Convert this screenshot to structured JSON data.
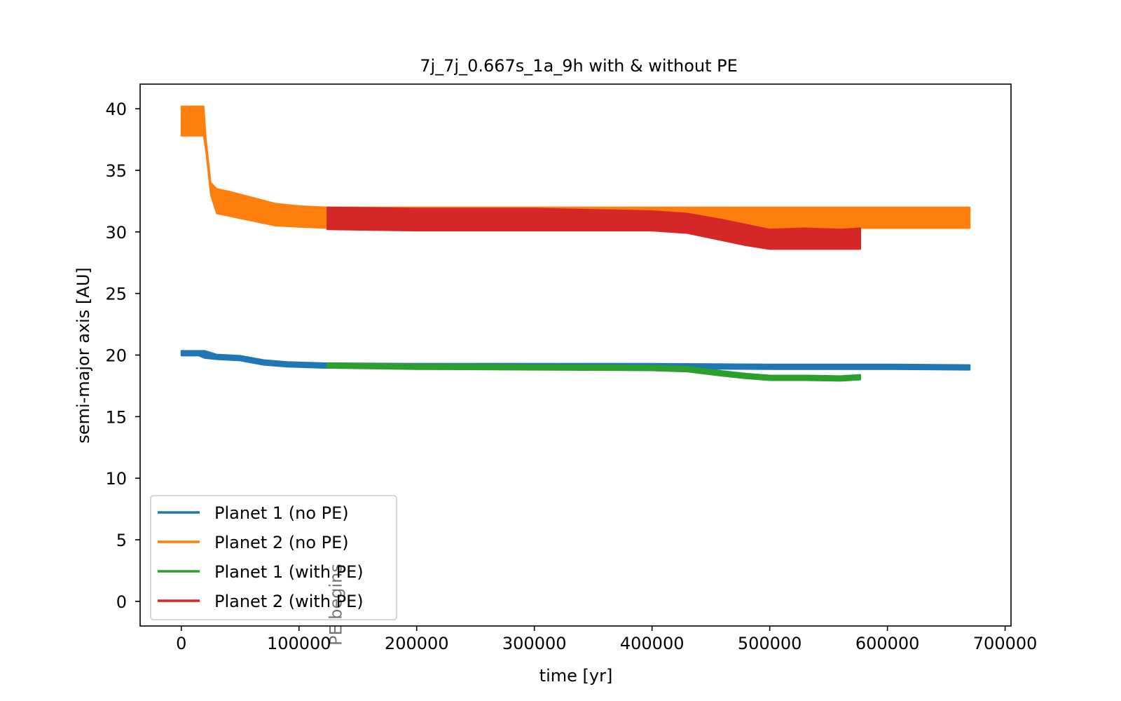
{
  "chart_data": {
    "type": "line",
    "title": "7j_7j_0.667s_1a_9h with & without PE",
    "xlabel": "time [yr]",
    "ylabel": "semi-major axis [AU]",
    "xlim": [
      -35000,
      705000
    ],
    "ylim": [
      -2,
      42
    ],
    "xticks": [
      0,
      100000,
      200000,
      300000,
      400000,
      500000,
      600000,
      700000
    ],
    "xtick_labels": [
      "0",
      "100000",
      "200000",
      "300000",
      "400000",
      "500000",
      "600000",
      "700000"
    ],
    "yticks": [
      0,
      5,
      10,
      15,
      20,
      25,
      30,
      35,
      40
    ],
    "ytick_labels": [
      "0",
      "5",
      "10",
      "15",
      "20",
      "25",
      "30",
      "35",
      "40"
    ],
    "grid": false,
    "legend_position": "lower-left",
    "annotation": {
      "text": "PE begins",
      "x": 138000,
      "rotation": -90
    },
    "series": [
      {
        "name": "Planet 1 (no PE)",
        "color": "#1f77b4",
        "x": [
          0,
          15000,
          20000,
          25000,
          30000,
          50000,
          70000,
          90000,
          120000,
          200000,
          300000,
          400000,
          500000,
          600000,
          670000
        ],
        "low": [
          19.95,
          19.95,
          19.75,
          19.7,
          19.65,
          19.55,
          19.2,
          19.05,
          18.95,
          18.9,
          18.9,
          18.9,
          18.85,
          18.85,
          18.8
        ],
        "high": [
          20.35,
          20.35,
          20.35,
          20.2,
          20.05,
          19.95,
          19.6,
          19.45,
          19.35,
          19.3,
          19.3,
          19.3,
          19.25,
          19.25,
          19.2
        ]
      },
      {
        "name": "Planet 2 (no PE)",
        "color": "#ff7f0e",
        "x": [
          0,
          19000,
          21000,
          25000,
          30000,
          40000,
          60000,
          80000,
          100000,
          125000,
          200000,
          300000,
          400000,
          500000,
          600000,
          670000
        ],
        "low": [
          37.8,
          37.8,
          36.5,
          33.0,
          31.5,
          31.3,
          30.9,
          30.5,
          30.4,
          30.3,
          30.3,
          30.3,
          30.3,
          30.3,
          30.3,
          30.3
        ],
        "high": [
          40.2,
          40.2,
          37.5,
          34.0,
          33.5,
          33.3,
          32.8,
          32.3,
          32.1,
          32.0,
          32.0,
          32.0,
          32.0,
          32.0,
          32.0,
          32.0
        ]
      },
      {
        "name": "Planet 1 (with PE)",
        "color": "#2ca02c",
        "x": [
          124000,
          200000,
          300000,
          400000,
          430000,
          460000,
          480000,
          500000,
          530000,
          560000,
          577000
        ],
        "low": [
          18.95,
          18.85,
          18.8,
          18.75,
          18.65,
          18.3,
          18.1,
          17.95,
          17.95,
          17.9,
          18.0
        ],
        "high": [
          19.35,
          19.25,
          19.2,
          19.15,
          19.05,
          18.7,
          18.5,
          18.35,
          18.35,
          18.3,
          18.4
        ]
      },
      {
        "name": "Planet 2 (with PE)",
        "color": "#d62728",
        "x": [
          124000,
          200000,
          300000,
          400000,
          430000,
          460000,
          480000,
          500000,
          530000,
          560000,
          577000
        ],
        "low": [
          30.2,
          30.1,
          30.1,
          30.1,
          29.9,
          29.3,
          28.9,
          28.6,
          28.6,
          28.6,
          28.6
        ],
        "high": [
          32.0,
          31.9,
          31.9,
          31.7,
          31.5,
          31.0,
          30.6,
          30.2,
          30.3,
          30.2,
          30.3
        ]
      }
    ]
  }
}
